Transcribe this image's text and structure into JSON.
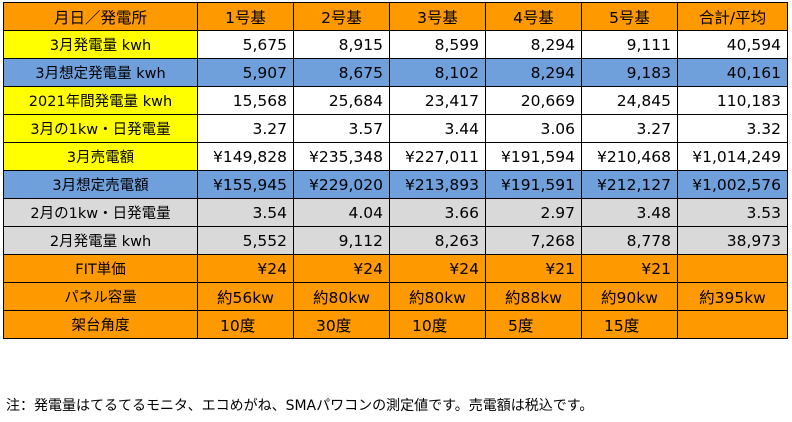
{
  "header": [
    "月日／発電所",
    "1号基",
    "2号基",
    "3号基",
    "4号基",
    "5号基",
    "合計/平均"
  ],
  "rows": [
    {
      "label": "3月発電量 kwh",
      "values": [
        "5,675",
        "8,915",
        "8,599",
        "8,294",
        "9,111",
        "40,594"
      ]
    },
    {
      "label": "3月想定発電量 kwh",
      "values": [
        "5,907",
        "8,675",
        "8,102",
        "8,294",
        "9,183",
        "40,161"
      ]
    },
    {
      "label": "2021年間発電量 kwh",
      "values": [
        "15,568",
        "25,684",
        "23,417",
        "20,669",
        "24,845",
        "110,183"
      ]
    },
    {
      "label": "3月の1kw・日発電量",
      "values": [
        "3.27",
        "3.57",
        "3.44",
        "3.06",
        "3.27",
        "3.32"
      ]
    },
    {
      "label": "3月売電額",
      "values": [
        "¥149,828",
        "¥235,348",
        "¥227,011",
        "¥191,594",
        "¥210,468",
        "¥1,014,249"
      ]
    },
    {
      "label": "3月想定売電額",
      "values": [
        "¥155,945",
        "¥229,020",
        "¥213,893",
        "¥191,591",
        "¥212,127",
        "¥1,002,576"
      ]
    },
    {
      "label": "2月の1kw・日発電量",
      "values": [
        "3.54",
        "4.04",
        "3.66",
        "2.97",
        "3.48",
        "3.53"
      ]
    },
    {
      "label": "2月発電量 kwh",
      "values": [
        "5,552",
        "9,112",
        "8,263",
        "7,268",
        "8,778",
        "38,973"
      ]
    },
    {
      "label": "FIT単価",
      "values": [
        "¥24",
        "¥24",
        "¥24",
        "¥21",
        "¥21",
        ""
      ]
    },
    {
      "label": "パネル容量",
      "values": [
        "約56kw",
        "約80kw",
        "約80kw",
        "約88kw",
        "約90kw",
        "約395kw"
      ]
    },
    {
      "label": "架台角度",
      "values": [
        "10度",
        "30度",
        "10度",
        "5度",
        "15度",
        ""
      ]
    }
  ],
  "note": "注：発電量はてるてるモニタ、エコめがね、SMAパワコンの測定値です。売電額は税込です。"
}
